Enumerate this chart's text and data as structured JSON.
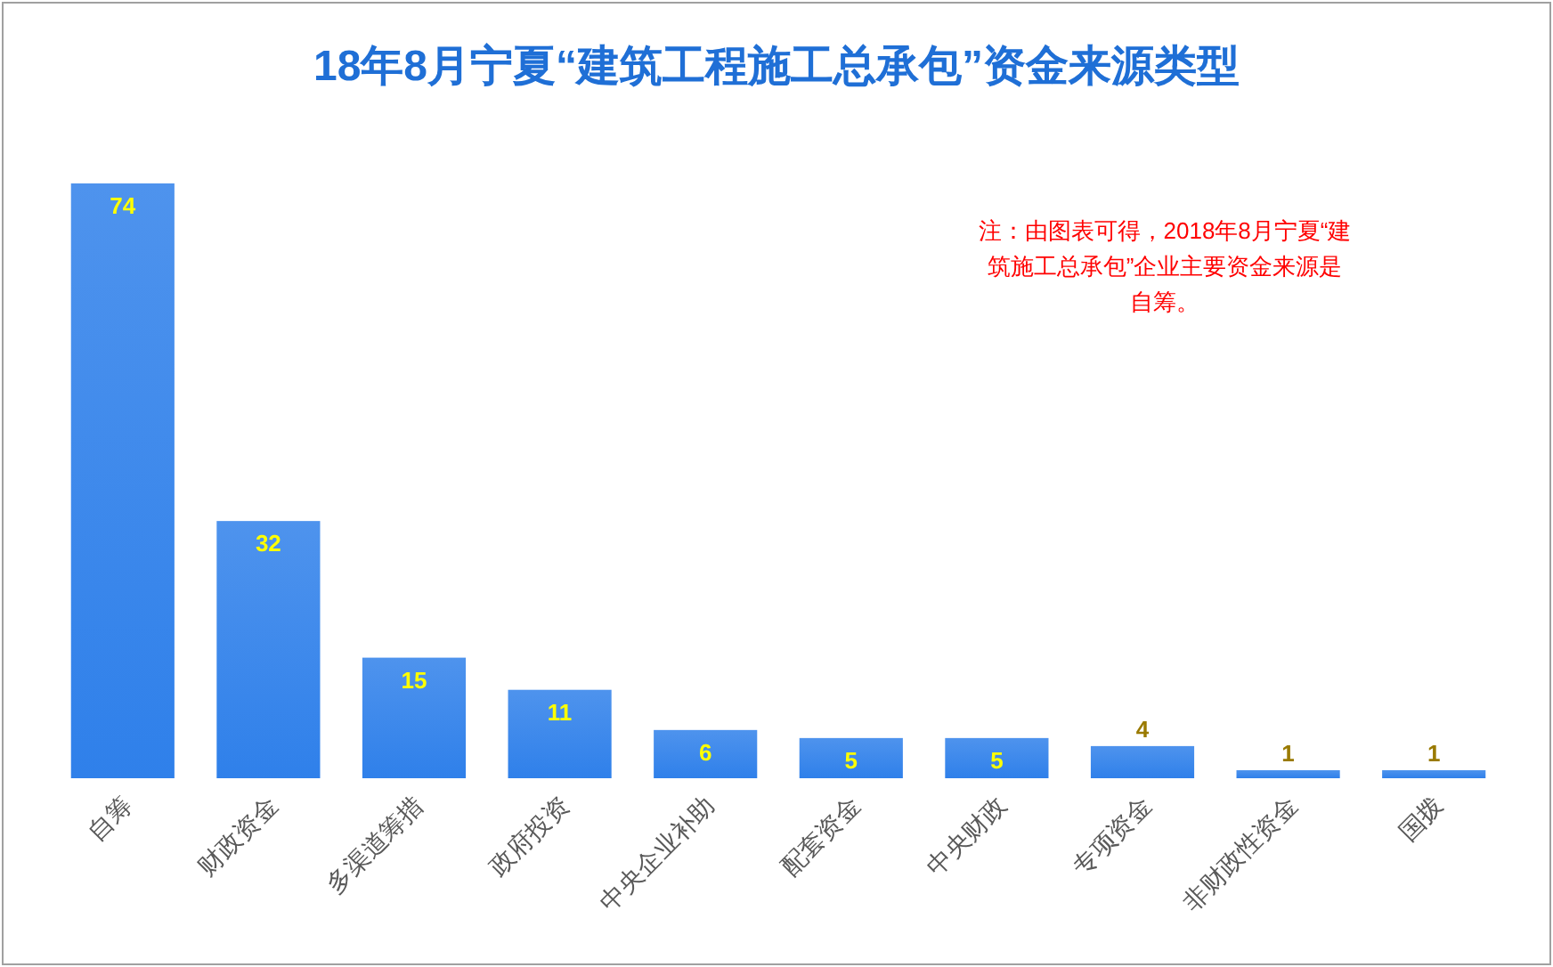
{
  "chart_data": {
    "type": "bar",
    "title": "18年8月宁夏“建筑工程施工总承包”资金来源类型",
    "categories": [
      "自筹",
      "财政资金",
      "多渠道筹措",
      "政府投资",
      "中央企业补助",
      "配套资金",
      "中央财政",
      "专项资金",
      "非财政性资金",
      "国拨"
    ],
    "values": [
      74,
      32,
      15,
      11,
      6,
      5,
      5,
      4,
      1,
      1
    ],
    "color": "#2f80ea",
    "data_labels": true,
    "annotations": [
      "注：由图表可得，2018年8月宁夏“建筑施工总承包”企业主要资金来源是自筹。"
    ]
  }
}
